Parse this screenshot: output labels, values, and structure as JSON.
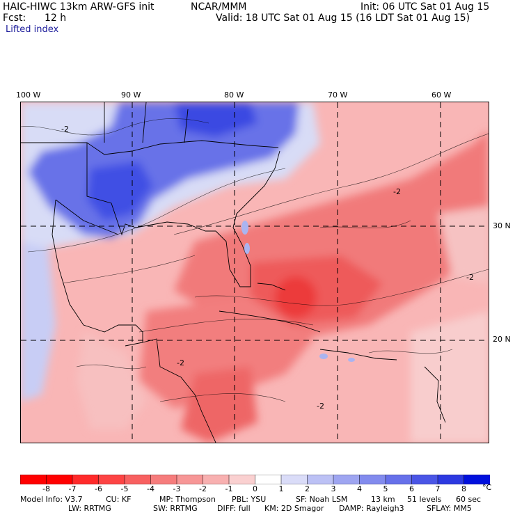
{
  "header": {
    "model_title": "HAIC-HIWC 13km ARW-GFS init",
    "org": "NCAR/MMM",
    "init": "Init: 06 UTC Sat 01 Aug 15",
    "fcst_label": "Fcst:",
    "fcst_value": "12 h",
    "valid": "Valid: 18 UTC Sat 01 Aug 15 (16 LDT Sat 01 Aug 15)",
    "field": "Lifted index"
  },
  "map": {
    "lon_labels": [
      "100 W",
      "90 W",
      "80 W",
      "70 W",
      "60 W"
    ],
    "lat_labels": [
      "30 N",
      "20 N"
    ],
    "contour_labels": [
      "-2",
      "-2",
      "-2",
      "-2",
      "-2"
    ],
    "colors": {
      "negative": "#f44848",
      "light_negative": "#fbb4b4",
      "positive": "#4a5ee8",
      "light_positive": "#c6cdf7"
    }
  },
  "colorbar": {
    "unit": "°C",
    "tick_labels": [
      "-8",
      "-7",
      "-6",
      "-5",
      "-4",
      "-3",
      "-2",
      "-1",
      "0",
      "1",
      "2",
      "3",
      "4",
      "5",
      "6",
      "7",
      "8"
    ],
    "colors": [
      "#ff0000",
      "#ff2a2a",
      "#fd4444",
      "#f86060",
      "#f67c7c",
      "#f79696",
      "#f8b0b0",
      "#fad0d0",
      "#ffffff",
      "#dadcf8",
      "#bcc1f5",
      "#9ea5f1",
      "#828bee",
      "#6670ea",
      "#4a55e6",
      "#2c39e1",
      "#0010dd"
    ]
  },
  "footer": {
    "line1": {
      "model_info": "Model Info: V3.7",
      "cu": "CU: KF",
      "mp": "MP: Thompson",
      "pbl": "PBL: YSU",
      "sf": "SF: Noah LSM",
      "res": "13 km",
      "levels": "51 levels",
      "dt": "60 sec"
    },
    "line2": {
      "lw": "LW: RRTMG",
      "sw": "SW: RRTMG",
      "diff": "DIFF: full",
      "km": "KM: 2D Smagor",
      "damp": "DAMP: Rayleigh3",
      "sflay": "SFLAY: MM5"
    }
  }
}
